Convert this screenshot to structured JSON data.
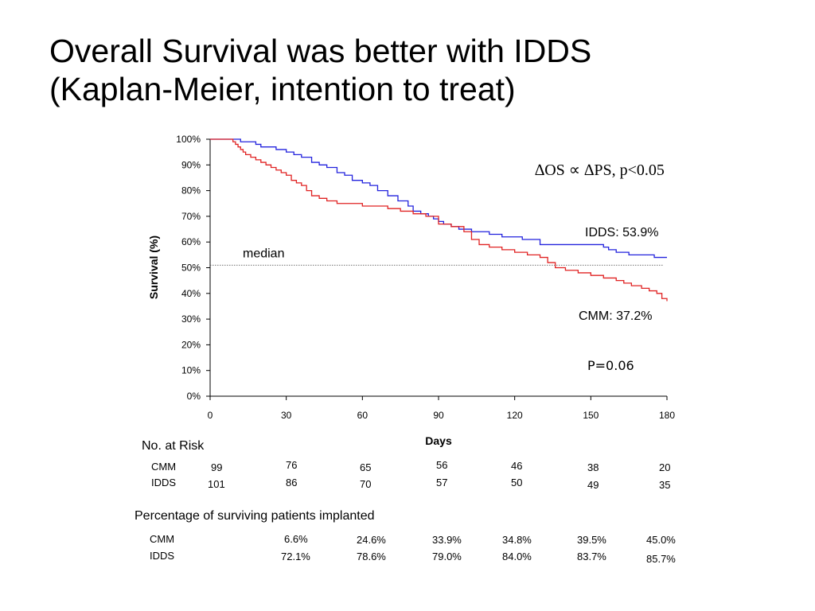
{
  "slide": {
    "title_line1": "Overall Survival was better with IDDS",
    "title_line2": "(Kaplan-Meier, intention to treat)"
  },
  "chart_data": {
    "type": "line",
    "title": "",
    "xlabel": "Days",
    "ylabel": "Survival (%)",
    "xlim": [
      0,
      180
    ],
    "ylim": [
      0,
      100
    ],
    "x_ticks": [
      0,
      30,
      60,
      90,
      120,
      150,
      180
    ],
    "x_tick_labels": [
      "0",
      "30",
      "60",
      "90",
      "120",
      "150",
      "180"
    ],
    "y_ticks": [
      0,
      10,
      20,
      30,
      40,
      50,
      60,
      70,
      80,
      90,
      100
    ],
    "y_tick_labels": [
      "0%",
      "10%",
      "20%",
      "30%",
      "40%",
      "50%",
      "60%",
      "70%",
      "80%",
      "90%",
      "100%"
    ],
    "grid": false,
    "series": [
      {
        "name": "IDDS",
        "color": "#2222dd",
        "x": [
          0,
          8,
          12,
          18,
          20,
          23,
          26,
          30,
          33,
          36,
          40,
          43,
          46,
          50,
          53,
          56,
          60,
          63,
          66,
          70,
          74,
          78,
          80,
          83,
          86,
          88,
          90,
          92,
          95,
          98,
          100,
          103,
          106,
          110,
          112,
          115,
          118,
          120,
          123,
          125,
          130,
          140,
          145,
          148,
          150,
          155,
          157,
          160,
          165,
          170,
          175,
          180
        ],
        "y": [
          100,
          100,
          99,
          98,
          97,
          97,
          96,
          95,
          94,
          93,
          91,
          90,
          89,
          87,
          86,
          84,
          83,
          82,
          80,
          78,
          76,
          74,
          72,
          71,
          70,
          69,
          68,
          67,
          66,
          65,
          65,
          64,
          64,
          63,
          63,
          62,
          62,
          62,
          61,
          61,
          59,
          59,
          59,
          59,
          59,
          58,
          57,
          56,
          55,
          55,
          54,
          54
        ]
      },
      {
        "name": "CMM",
        "color": "#e02222",
        "x": [
          0,
          8,
          9,
          10,
          11,
          12,
          13,
          14,
          16,
          18,
          20,
          22,
          24,
          26,
          28,
          30,
          32,
          34,
          36,
          38,
          40,
          43,
          46,
          50,
          56,
          60,
          66,
          70,
          75,
          80,
          85,
          90,
          95,
          100,
          103,
          106,
          110,
          115,
          120,
          125,
          130,
          133,
          136,
          140,
          145,
          150,
          155,
          160,
          163,
          166,
          170,
          173,
          176,
          178,
          180
        ],
        "y": [
          100,
          100,
          99,
          98,
          97,
          96,
          95,
          94,
          93,
          92,
          91,
          90,
          89,
          88,
          87,
          86,
          84,
          83,
          82,
          80,
          78,
          77,
          76,
          75,
          75,
          74,
          74,
          73,
          72,
          71,
          70,
          67,
          66,
          64,
          61,
          59,
          58,
          57,
          56,
          55,
          54,
          52,
          50,
          49,
          48,
          47,
          46,
          45,
          44,
          43,
          42,
          41,
          40,
          38,
          37
        ]
      }
    ],
    "reference_line": {
      "y": 51,
      "label": "median",
      "style": "dotted"
    },
    "annotations": {
      "formula": "∆OS ∝ ∆PS, p<0.05",
      "idds_label": "IDDS: 53.9%",
      "cmm_label": "CMM:  37.2%",
      "p_value": "P=0.06"
    }
  },
  "risk_table": {
    "title": "No. at  Risk",
    "rows": [
      {
        "label": "CMM",
        "values": [
          "99",
          "76",
          "65",
          "56",
          "46",
          "38",
          "20"
        ]
      },
      {
        "label": "IDDS",
        "values": [
          "101",
          "86",
          "70",
          "57",
          "50",
          "49",
          "35"
        ]
      }
    ]
  },
  "implant_table": {
    "title": "Percentage of surviving patients implanted",
    "rows": [
      {
        "label": "CMM",
        "values": [
          "6.6%",
          "24.6%",
          "33.9%",
          "34.8%",
          "39.5%",
          "45.0%"
        ]
      },
      {
        "label": "IDDS",
        "values": [
          "72.1%",
          "78.6%",
          "79.0%",
          "84.0%",
          "83.7%",
          "85.7%"
        ]
      }
    ]
  }
}
